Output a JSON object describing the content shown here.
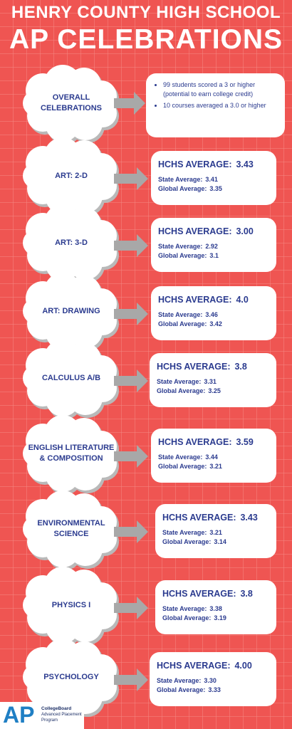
{
  "header": {
    "line1": "HENRY COUNTY HIGH SCHOOL",
    "line2": "AP CELEBRATIONS"
  },
  "labels": {
    "hchs": "HCHS AVERAGE:",
    "state": "State Average:",
    "global": "Global Average:"
  },
  "overall": {
    "name": [
      "OVERALL",
      "CELEBRATIONS"
    ],
    "bullets": [
      "99 students scored a 3 or higher (potential to earn college credit)",
      "10 courses averaged a 3.0 or higher"
    ]
  },
  "courses": [
    {
      "name": [
        "ART: 2-D"
      ],
      "hchs": "3.43",
      "state": "3.41",
      "global": "3.35"
    },
    {
      "name": [
        "ART: 3-D"
      ],
      "hchs": "3.00",
      "state": "2.92",
      "global": "3.1"
    },
    {
      "name": [
        "ART: DRAWING"
      ],
      "hchs": "4.0",
      "state": "3.46",
      "global": "3.42"
    },
    {
      "name": [
        "CALCULUS A/B"
      ],
      "hchs": "3.8",
      "state": "3.31",
      "global": "3.25"
    },
    {
      "name": [
        "ENGLISH LITERATURE",
        "& COMPOSITION"
      ],
      "hchs": "3.59",
      "state": "3.44",
      "global": "3.21"
    },
    {
      "name": [
        "ENVIRONMENTAL",
        "SCIENCE"
      ],
      "hchs": "3.43",
      "state": "3.21",
      "global": "3.14"
    },
    {
      "name": [
        "PHYSICS I"
      ],
      "hchs": "3.8",
      "state": "3.38",
      "global": "3.19"
    },
    {
      "name": [
        "PSYCHOLOGY"
      ],
      "hchs": "4.00",
      "state": "3.30",
      "global": "3.33"
    }
  ],
  "logo": {
    "mark": "AP",
    "line1": "CollegeBoard",
    "line2": "Advanced Placement",
    "line3": "Program"
  }
}
